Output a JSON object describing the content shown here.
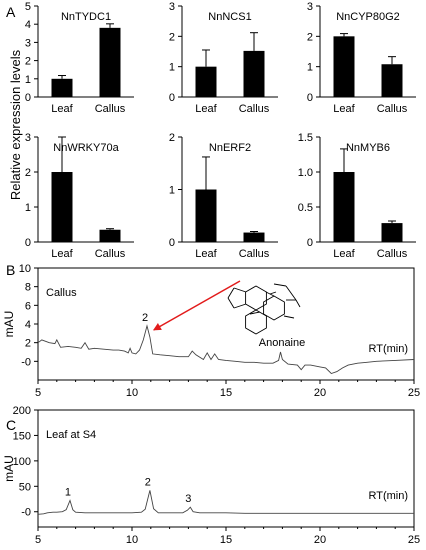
{
  "panel_labels": {
    "a": "A",
    "b": "B",
    "c": "C"
  },
  "shared_ylabel": "Relative expression levels",
  "chart_data": [
    {
      "type": "bar",
      "title": "NnTYDC1",
      "categories": [
        "Leaf",
        "Callus"
      ],
      "values": [
        1.0,
        3.8
      ],
      "errors": [
        0.18,
        0.22
      ],
      "ylim": [
        0,
        5
      ],
      "yticks": [
        "0",
        "1",
        "2",
        "3",
        "4",
        "5"
      ]
    },
    {
      "type": "bar",
      "title": "NnNCS1",
      "categories": [
        "Leaf",
        "Callus"
      ],
      "values": [
        1.0,
        1.52
      ],
      "errors": [
        0.55,
        0.6
      ],
      "ylim": [
        0,
        3
      ],
      "yticks": [
        "0",
        "1",
        "2",
        "3"
      ]
    },
    {
      "type": "bar",
      "title": "NnCYP80G2",
      "categories": [
        "Leaf",
        "Callus"
      ],
      "values": [
        2.0,
        1.08
      ],
      "errors": [
        0.09,
        0.25
      ],
      "ylim": [
        0,
        3
      ],
      "yticks": [
        "0",
        "1",
        "2",
        "3"
      ]
    },
    {
      "type": "bar",
      "title": "NnWRKY70a",
      "categories": [
        "Leaf",
        "Callus"
      ],
      "values": [
        2.0,
        0.35
      ],
      "errors": [
        1.0,
        0.03
      ],
      "ylim": [
        0,
        3
      ],
      "yticks": [
        "0",
        "1",
        "2",
        "3"
      ]
    },
    {
      "type": "bar",
      "title": "NnERF2",
      "categories": [
        "Leaf",
        "Callus"
      ],
      "values": [
        1.0,
        0.18
      ],
      "errors": [
        0.62,
        0.02
      ],
      "ylim": [
        0,
        2
      ],
      "yticks": [
        "0",
        "1",
        "2"
      ]
    },
    {
      "type": "bar",
      "title": "NnMYB6",
      "categories": [
        "Leaf",
        "Callus"
      ],
      "values": [
        1.0,
        0.27
      ],
      "errors": [
        0.33,
        0.03
      ],
      "ylim": [
        0,
        1.5
      ],
      "yticks": [
        "0",
        "0.5",
        "1.0",
        "1.5"
      ]
    },
    {
      "type": "line",
      "panel": "B",
      "inner_label": "Callus",
      "ylabel": "mAU",
      "xlabel": "RT(min)",
      "xlim": [
        5,
        25
      ],
      "ylim": [
        -2,
        10
      ],
      "xticks": [
        "5",
        "10",
        "15",
        "20",
        "25"
      ],
      "yticks": [
        "-0",
        "2",
        "4",
        "6",
        "8",
        "10"
      ],
      "peak_labels": [
        {
          "text": "2",
          "x": 10.8,
          "y": 3.8
        }
      ],
      "compound_label": "Anonaine",
      "series": [
        {
          "points": [
            [
              5,
              2.0
            ],
            [
              5.2,
              2.3
            ],
            [
              5.6,
              2.0
            ],
            [
              5.9,
              1.9
            ],
            [
              6.0,
              2.3
            ],
            [
              6.2,
              1.5
            ],
            [
              6.6,
              1.6
            ],
            [
              7.0,
              1.5
            ],
            [
              7.3,
              1.4
            ],
            [
              7.5,
              2.0
            ],
            [
              7.7,
              1.3
            ],
            [
              8.0,
              1.4
            ],
            [
              8.5,
              1.3
            ],
            [
              9.0,
              1.2
            ],
            [
              9.3,
              1.2
            ],
            [
              9.6,
              1.1
            ],
            [
              9.8,
              0.9
            ],
            [
              9.9,
              1.4
            ],
            [
              10.0,
              0.9
            ],
            [
              10.2,
              0.8
            ],
            [
              10.4,
              1.2
            ],
            [
              10.6,
              2.3
            ],
            [
              10.8,
              3.8
            ],
            [
              10.95,
              2.6
            ],
            [
              11.1,
              0.8
            ],
            [
              11.5,
              0.7
            ],
            [
              12.0,
              0.6
            ],
            [
              12.5,
              0.5
            ],
            [
              13.0,
              0.5
            ],
            [
              13.2,
              1.1
            ],
            [
              13.4,
              0.7
            ],
            [
              13.8,
              0.2
            ],
            [
              14.0,
              0.9
            ],
            [
              14.2,
              0.2
            ],
            [
              14.4,
              0.8
            ],
            [
              14.6,
              0.2
            ],
            [
              15.0,
              0.1
            ],
            [
              15.5,
              0.0
            ],
            [
              16.0,
              -0.1
            ],
            [
              16.5,
              -0.1
            ],
            [
              17.0,
              -0.2
            ],
            [
              17.5,
              -0.2
            ],
            [
              17.8,
              0.1
            ],
            [
              17.9,
              1.0
            ],
            [
              18.0,
              0.2
            ],
            [
              18.3,
              -0.3
            ],
            [
              18.8,
              -0.4
            ],
            [
              19.0,
              -0.9
            ],
            [
              19.2,
              -0.4
            ],
            [
              19.5,
              -0.4
            ],
            [
              20.0,
              -0.6
            ],
            [
              20.3,
              -0.7
            ],
            [
              20.6,
              -1.3
            ],
            [
              20.9,
              -1.1
            ],
            [
              21.2,
              -0.7
            ],
            [
              21.5,
              -0.4
            ],
            [
              22.0,
              -0.2
            ],
            [
              22.5,
              -0.1
            ],
            [
              23.0,
              0.0
            ],
            [
              24.0,
              0.1
            ],
            [
              25.0,
              0.2
            ]
          ]
        }
      ]
    },
    {
      "type": "line",
      "panel": "C",
      "inner_label": "Leaf at S4",
      "ylabel": "mAU",
      "xlabel": "RT(min)",
      "xlim": [
        5,
        25
      ],
      "ylim": [
        -30,
        200
      ],
      "xticks": [
        "5",
        "10",
        "15",
        "20",
        "25"
      ],
      "yticks": [
        "-0",
        "50",
        "100",
        "150",
        "200"
      ],
      "peak_labels": [
        {
          "text": "1",
          "x": 6.7,
          "y": 22
        },
        {
          "text": "2",
          "x": 10.95,
          "y": 42
        },
        {
          "text": "3",
          "x": 13.1,
          "y": 9
        }
      ],
      "series": [
        {
          "points": [
            [
              5,
              -5
            ],
            [
              5.3,
              -4
            ],
            [
              5.5,
              -2
            ],
            [
              5.8,
              -1
            ],
            [
              6.0,
              -1
            ],
            [
              6.3,
              0
            ],
            [
              6.5,
              4
            ],
            [
              6.7,
              22
            ],
            [
              6.85,
              4
            ],
            [
              7.0,
              -1
            ],
            [
              7.5,
              -2
            ],
            [
              8.0,
              -2
            ],
            [
              9.0,
              -2
            ],
            [
              10.0,
              -2
            ],
            [
              10.5,
              -1
            ],
            [
              10.7,
              5
            ],
            [
              10.95,
              42
            ],
            [
              11.15,
              6
            ],
            [
              11.4,
              -2
            ],
            [
              12.0,
              -2
            ],
            [
              12.7,
              -2
            ],
            [
              12.95,
              3
            ],
            [
              13.1,
              9
            ],
            [
              13.25,
              0
            ],
            [
              13.6,
              -2
            ],
            [
              14.5,
              -2
            ],
            [
              15.0,
              -2
            ],
            [
              16.0,
              -3
            ],
            [
              17.0,
              -3
            ],
            [
              18.0,
              -3
            ],
            [
              19.0,
              -3
            ],
            [
              20.0,
              -3
            ],
            [
              21.0,
              -3
            ],
            [
              22.0,
              -3
            ],
            [
              23.0,
              -3
            ],
            [
              24.0,
              -3
            ],
            [
              25.0,
              -3
            ]
          ]
        }
      ]
    }
  ]
}
